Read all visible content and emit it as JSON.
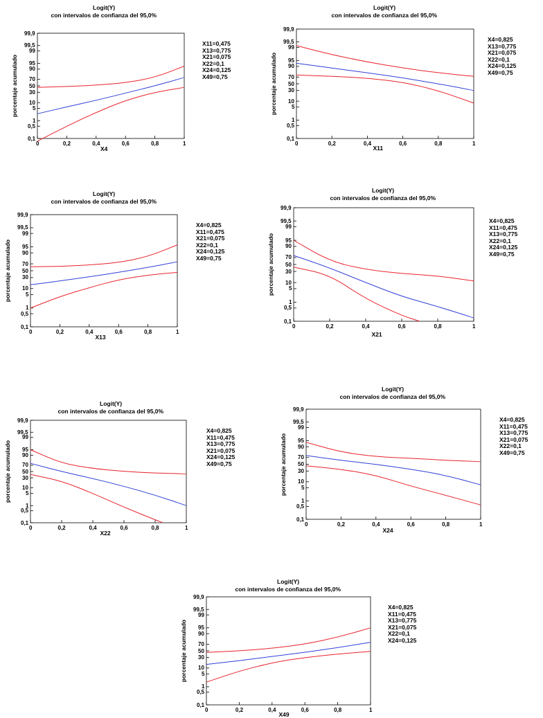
{
  "colors": {
    "mean": "#2f3fd6",
    "band": "#e8222b",
    "axis": "#000000"
  },
  "y_tick_labels": [
    "99,9",
    "99,5",
    "99",
    "95",
    "90",
    "70",
    "50",
    "30",
    "10",
    "5",
    "1",
    "0,5",
    "0,1"
  ],
  "x_tick_labels": [
    "0",
    "0,2",
    "0,4",
    "0,6",
    "0,8",
    "1"
  ],
  "chart_data": [
    {
      "type": "line",
      "title": "Logit(Y)",
      "subtitle": "con intervalos de confianza del  95,0%",
      "xlabel": "X4",
      "ylabel": "porcentaje acumulado",
      "xlim": [
        0,
        1
      ],
      "yscale": "logit",
      "ylim": [
        0.1,
        99.9
      ],
      "fixed_values": [
        "X11=0,475",
        "X13=0,775",
        "X21=0,075",
        "X22=0,1",
        "X24=0,125",
        "X49=0,75"
      ],
      "x": [
        0,
        0.2,
        0.4,
        0.6,
        0.8,
        1
      ],
      "series": [
        {
          "role": "mean",
          "values": [
            2.5,
            6,
            13,
            28,
            50,
            75
          ]
        },
        {
          "role": "upper",
          "values": [
            45,
            48,
            52,
            60,
            75,
            93
          ]
        },
        {
          "role": "lower",
          "values": [
            0.07,
            0.5,
            3,
            13,
            30,
            45
          ]
        }
      ],
      "grid": false
    },
    {
      "type": "line",
      "title": "Logit(Y)",
      "subtitle": "con intervalos de confianza del  95,0%",
      "xlabel": "X11",
      "ylabel": "porcentaje acumulado",
      "xlim": [
        0,
        1
      ],
      "yscale": "logit",
      "ylim": [
        0.1,
        99.9
      ],
      "fixed_values": [
        "X4=0,825",
        "X13=0,775",
        "X21=0,075",
        "X22=0,1",
        "X24=0,125",
        "X49=0,75"
      ],
      "x": [
        0,
        0.2,
        0.4,
        0.6,
        0.8,
        1
      ],
      "series": [
        {
          "role": "mean",
          "values": [
            93,
            88,
            80,
            68,
            50,
            30
          ]
        },
        {
          "role": "upper",
          "values": [
            99.2,
            97.5,
            94,
            88,
            80,
            72
          ]
        },
        {
          "role": "lower",
          "values": [
            75,
            72,
            67,
            55,
            30,
            8
          ]
        }
      ],
      "grid": false
    },
    {
      "type": "line",
      "title": "Logit(Y)",
      "subtitle": "con intervalos de confianza del  95,0%",
      "xlabel": "X13",
      "ylabel": "porcentaje acumulado",
      "xlim": [
        0,
        1
      ],
      "yscale": "logit",
      "ylim": [
        0.1,
        99.9
      ],
      "fixed_values": [
        "X4=0,825",
        "X11=0,475",
        "X21=0,075",
        "X22=0,1",
        "X24=0,125",
        "X49=0,75"
      ],
      "x": [
        0,
        0.2,
        0.4,
        0.6,
        0.8,
        1
      ],
      "series": [
        {
          "role": "mean",
          "values": [
            15,
            22,
            32,
            45,
            60,
            75
          ]
        },
        {
          "role": "upper",
          "values": [
            62,
            63,
            67,
            73,
            85,
            96
          ]
        },
        {
          "role": "lower",
          "values": [
            1,
            4,
            11,
            25,
            37,
            45
          ]
        }
      ],
      "grid": false
    },
    {
      "type": "line",
      "title": "Logit(Y)",
      "subtitle": "con intervalos de confianza del  95,0%",
      "xlabel": "X21",
      "ylabel": "porcentaje acumulado",
      "xlim": [
        0,
        1
      ],
      "yscale": "logit",
      "ylim": [
        0.1,
        99.9
      ],
      "fixed_values": [
        "X4=0,825",
        "X11=0,475",
        "X13=0,775",
        "X22=0,1",
        "X24=0,125",
        "X49=0,75"
      ],
      "x": [
        0,
        0.2,
        0.4,
        0.6,
        0.7,
        0.8,
        1
      ],
      "series": [
        {
          "role": "mean",
          "values": [
            75,
            40,
            10,
            2,
            null,
            0.6,
            0.15
          ]
        },
        {
          "role": "upper",
          "values": [
            95,
            60,
            35,
            25,
            null,
            20,
            12
          ]
        },
        {
          "role": "lower",
          "values": [
            42,
            22,
            1.5,
            0.2,
            0.1,
            null,
            null
          ]
        }
      ],
      "grid": false
    },
    {
      "type": "line",
      "title": "Logit(Y)",
      "subtitle": "con intervalos de confianza del  95,0%",
      "xlabel": "X22",
      "ylabel": "porcentaje acumulado",
      "xlim": [
        0,
        1
      ],
      "yscale": "logit",
      "ylim": [
        0.1,
        99.9
      ],
      "fixed_values": [
        "X4=0,825",
        "X11=0,475",
        "X13=0,775",
        "X21=0,075",
        "X24=0,125",
        "X49=0,75"
      ],
      "x": [
        0,
        0.2,
        0.4,
        0.6,
        0.8,
        0.85,
        1
      ],
      "series": [
        {
          "role": "mean",
          "values": [
            75,
            50,
            28,
            12,
            4,
            null,
            1
          ]
        },
        {
          "role": "upper",
          "values": [
            95,
            75,
            60,
            50,
            45,
            null,
            42
          ]
        },
        {
          "role": "lower",
          "values": [
            40,
            22,
            5,
            0.8,
            0.15,
            0.1,
            null
          ]
        }
      ],
      "grid": false
    },
    {
      "type": "line",
      "title": "Logit(Y)",
      "subtitle": "con intervalos de confianza del  95,0%",
      "xlabel": "X24",
      "ylabel": "porcentaje acumulado",
      "xlim": [
        0,
        1
      ],
      "yscale": "logit",
      "ylim": [
        0.1,
        99.9
      ],
      "fixed_values": [
        "X4=0,825",
        "X11=0,475",
        "X13=0,775",
        "X21=0,075",
        "X22=0,1",
        "X49=0,75"
      ],
      "x": [
        0,
        0.2,
        0.4,
        0.6,
        0.8,
        1
      ],
      "series": [
        {
          "role": "mean",
          "values": [
            75,
            62,
            50,
            35,
            20,
            7
          ]
        },
        {
          "role": "upper",
          "values": [
            94,
            82,
            72,
            68,
            62,
            58
          ]
        },
        {
          "role": "lower",
          "values": [
            45,
            35,
            20,
            6,
            2,
            0.6
          ]
        }
      ],
      "grid": false
    },
    {
      "type": "line",
      "title": "Logit(Y)",
      "subtitle": "con intervalos de confianza del  95,0%",
      "xlabel": "X49",
      "ylabel": "porcentaje acumulado",
      "xlim": [
        0,
        1
      ],
      "yscale": "logit",
      "ylim": [
        0.1,
        99.9
      ],
      "fixed_values": [
        "X4=0,825",
        "X11=0,475",
        "X13=0,775",
        "X21=0,075",
        "X22=0,1",
        "X24=0,125"
      ],
      "x": [
        0,
        0.2,
        0.4,
        0.6,
        0.8,
        1
      ],
      "series": [
        {
          "role": "mean",
          "values": [
            15,
            22,
            33,
            45,
            60,
            75
          ]
        },
        {
          "role": "upper",
          "values": [
            45,
            50,
            58,
            70,
            85,
            95
          ]
        },
        {
          "role": "lower",
          "values": [
            1.8,
            7,
            18,
            30,
            40,
            48
          ]
        }
      ],
      "grid": false
    }
  ]
}
